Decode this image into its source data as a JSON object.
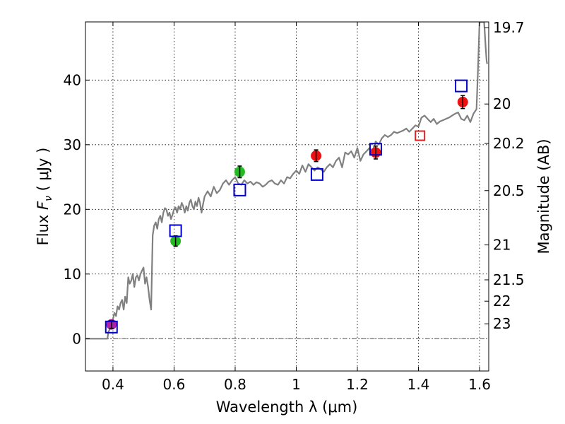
{
  "chart_data": {
    "type": "scatter",
    "xlabel": "Wavelength  λ (μm)",
    "ylabel": "Flux  F_ν  ( μJy )",
    "ylabel_parts": {
      "pre": "Flux  ",
      "sym": "F",
      "sub": "ν",
      "post": "  ( μJy )"
    },
    "y2label": "Magnitude (AB)",
    "xlim": [
      0.31,
      1.63
    ],
    "ylim": [
      -5,
      49
    ],
    "grid": true,
    "x_ticks": [
      {
        "value": 0.4,
        "label": "0.4"
      },
      {
        "value": 0.6,
        "label": "0.6"
      },
      {
        "value": 0.8,
        "label": "0.8"
      },
      {
        "value": 1.0,
        "label": "1"
      },
      {
        "value": 1.2,
        "label": "1.2"
      },
      {
        "value": 1.4,
        "label": "1.4"
      },
      {
        "value": 1.6,
        "label": "1.6"
      }
    ],
    "y_ticks": [
      {
        "value": 0,
        "label": "0"
      },
      {
        "value": 10,
        "label": "10"
      },
      {
        "value": 20,
        "label": "20"
      },
      {
        "value": 30,
        "label": "30"
      },
      {
        "value": 40,
        "label": "40"
      }
    ],
    "mag_ticks": [
      {
        "label": "19.7",
        "flux": 48.1
      },
      {
        "label": "20",
        "flux": 36.3
      },
      {
        "label": "20.2",
        "flux": 30.2
      },
      {
        "label": "20.5",
        "flux": 22.9
      },
      {
        "label": "21",
        "flux": 14.5
      },
      {
        "label": "21.5",
        "flux": 9.1
      },
      {
        "label": "22",
        "flux": 5.8
      },
      {
        "label": "23",
        "flux": 2.3
      }
    ],
    "colors": {
      "model": "#808080",
      "green": "#22bb22",
      "red": "#ee1111",
      "magenta": "#aa22aa",
      "box": "#0000cc",
      "box_red": "#dd2222",
      "zero_line": "#555555"
    },
    "model_spectrum": {
      "x": [
        0.31,
        0.37,
        0.382,
        0.385,
        0.39,
        0.395,
        0.4,
        0.405,
        0.41,
        0.415,
        0.42,
        0.425,
        0.43,
        0.435,
        0.44,
        0.445,
        0.45,
        0.455,
        0.46,
        0.465,
        0.47,
        0.475,
        0.48,
        0.485,
        0.49,
        0.495,
        0.5,
        0.505,
        0.51,
        0.515,
        0.52,
        0.525,
        0.53,
        0.535,
        0.54,
        0.545,
        0.55,
        0.555,
        0.56,
        0.565,
        0.57,
        0.575,
        0.58,
        0.585,
        0.59,
        0.595,
        0.6,
        0.605,
        0.61,
        0.615,
        0.62,
        0.625,
        0.63,
        0.635,
        0.64,
        0.645,
        0.65,
        0.655,
        0.66,
        0.665,
        0.67,
        0.675,
        0.68,
        0.685,
        0.69,
        0.695,
        0.7,
        0.71,
        0.72,
        0.73,
        0.74,
        0.75,
        0.76,
        0.77,
        0.78,
        0.79,
        0.8,
        0.81,
        0.82,
        0.83,
        0.84,
        0.85,
        0.86,
        0.87,
        0.88,
        0.89,
        0.9,
        0.91,
        0.92,
        0.93,
        0.94,
        0.95,
        0.96,
        0.97,
        0.98,
        0.99,
        1.0,
        1.01,
        1.02,
        1.03,
        1.04,
        1.05,
        1.06,
        1.07,
        1.08,
        1.09,
        1.1,
        1.11,
        1.12,
        1.13,
        1.14,
        1.15,
        1.16,
        1.17,
        1.18,
        1.19,
        1.2,
        1.21,
        1.22,
        1.23,
        1.24,
        1.25,
        1.26,
        1.27,
        1.28,
        1.29,
        1.3,
        1.31,
        1.32,
        1.33,
        1.34,
        1.35,
        1.36,
        1.37,
        1.38,
        1.39,
        1.4,
        1.41,
        1.42,
        1.43,
        1.44,
        1.45,
        1.46,
        1.47,
        1.48,
        1.49,
        1.5,
        1.51,
        1.52,
        1.53,
        1.54,
        1.55,
        1.56,
        1.57,
        1.58,
        1.59,
        1.595,
        1.6,
        1.605,
        1.61,
        1.615,
        1.62,
        1.623,
        1.625
      ],
      "y": [
        0,
        0,
        0,
        1.0,
        1.5,
        2.5,
        3.0,
        4.0,
        3.5,
        5.0,
        4.5,
        5.5,
        6.0,
        4.5,
        6.5,
        5.5,
        9.5,
        8.5,
        9.0,
        10.0,
        8.0,
        9.5,
        9.8,
        9.0,
        10.0,
        10.5,
        11.0,
        8.5,
        9.5,
        8.0,
        6.0,
        4.5,
        16.0,
        17.5,
        18.0,
        17.0,
        18.5,
        19.0,
        18.0,
        19.5,
        20.2,
        20.0,
        19.0,
        19.5,
        18.5,
        19.2,
        20.0,
        20.3,
        19.5,
        20.5,
        20.0,
        21.0,
        20.5,
        19.5,
        20.5,
        19.8,
        21.0,
        21.5,
        20.5,
        20.0,
        21.2,
        20.5,
        21.8,
        21.0,
        19.5,
        20.8,
        22.0,
        22.8,
        22.0,
        23.5,
        22.5,
        23.0,
        24.0,
        24.5,
        23.8,
        24.5,
        25.0,
        24.0,
        23.8,
        24.5,
        24.0,
        24.3,
        23.8,
        24.2,
        24.0,
        23.5,
        23.8,
        24.3,
        24.5,
        24.0,
        23.8,
        24.5,
        24.0,
        25.0,
        24.8,
        25.5,
        26.0,
        25.5,
        26.8,
        25.8,
        27.0,
        26.5,
        26.0,
        26.5,
        26.2,
        25.8,
        26.5,
        27.0,
        26.5,
        27.5,
        28.0,
        26.5,
        28.8,
        28.5,
        29.0,
        28.0,
        29.5,
        27.5,
        28.5,
        29.0,
        29.5,
        29.0,
        30.5,
        30.0,
        31.0,
        31.5,
        31.2,
        31.5,
        32.0,
        31.8,
        32.0,
        32.2,
        32.5,
        32.0,
        32.5,
        33.0,
        32.8,
        34.2,
        34.5,
        34.0,
        33.5,
        34.0,
        33.2,
        33.6,
        33.8,
        34.0,
        34.2,
        34.5,
        34.8,
        35.0,
        34.0,
        33.8,
        34.5,
        33.5,
        34.8,
        35.5,
        42.0,
        49.0,
        49.0,
        49.0,
        49.0,
        45.0,
        43.0,
        42.5
      ]
    },
    "filled_points": [
      {
        "x": 0.395,
        "y": 2.2,
        "err": 0.6,
        "color": "magenta"
      },
      {
        "x": 0.605,
        "y": 15.1,
        "err": 0.8,
        "color": "green"
      },
      {
        "x": 0.815,
        "y": 25.8,
        "err": 0.9,
        "color": "green"
      },
      {
        "x": 1.065,
        "y": 28.3,
        "err": 0.9,
        "color": "red"
      },
      {
        "x": 1.26,
        "y": 28.8,
        "err": 1.0,
        "color": "red"
      },
      {
        "x": 1.545,
        "y": 36.6,
        "err": 1.0,
        "color": "red"
      }
    ],
    "open_boxes": [
      {
        "x": 0.395,
        "y": 1.8,
        "color": "box"
      },
      {
        "x": 0.605,
        "y": 16.7,
        "color": "box"
      },
      {
        "x": 0.815,
        "y": 23.0,
        "color": "box"
      },
      {
        "x": 1.068,
        "y": 25.4,
        "color": "box"
      },
      {
        "x": 1.26,
        "y": 29.3,
        "color": "box"
      },
      {
        "x": 1.405,
        "y": 31.4,
        "color": "box_red"
      },
      {
        "x": 1.54,
        "y": 39.1,
        "color": "box"
      }
    ]
  }
}
